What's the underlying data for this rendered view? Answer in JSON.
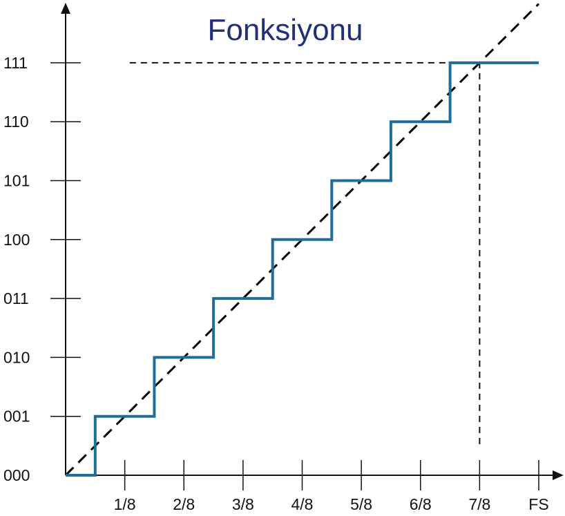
{
  "chart_data": {
    "type": "line",
    "title": "Fonksiyonu",
    "xlabel": "",
    "ylabel": "",
    "x_ticks": [
      "1/8",
      "2/8",
      "3/8",
      "4/8",
      "5/8",
      "6/8",
      "7/8",
      "FS"
    ],
    "y_ticks": [
      "000",
      "001",
      "010",
      "011",
      "100",
      "101",
      "110",
      "111"
    ],
    "xlim": [
      0,
      1
    ],
    "ylim": [
      0,
      7
    ],
    "grid": false,
    "series": [
      {
        "type": "step",
        "color": "#1f6e99",
        "x": [
          0,
          0.0625,
          0.0625,
          0.1875,
          0.1875,
          0.3125,
          0.3125,
          0.4375,
          0.4375,
          0.5625,
          0.5625,
          0.6875,
          0.6875,
          0.8125,
          0.8125,
          1.0
        ],
        "y": [
          0,
          0,
          1,
          1,
          2,
          2,
          3,
          3,
          4,
          4,
          5,
          5,
          6,
          6,
          7,
          7
        ]
      },
      {
        "type": "dashed-line",
        "color": "#000000",
        "x": [
          0,
          1.0
        ],
        "y": [
          0,
          8
        ]
      }
    ],
    "reference_lines": [
      {
        "orientation": "horizontal",
        "value": 7,
        "from": 0.0625,
        "to": 0.875,
        "style": "dashed"
      },
      {
        "orientation": "vertical",
        "value": 0.875,
        "from": 0,
        "to": 7,
        "style": "dashed"
      }
    ]
  }
}
